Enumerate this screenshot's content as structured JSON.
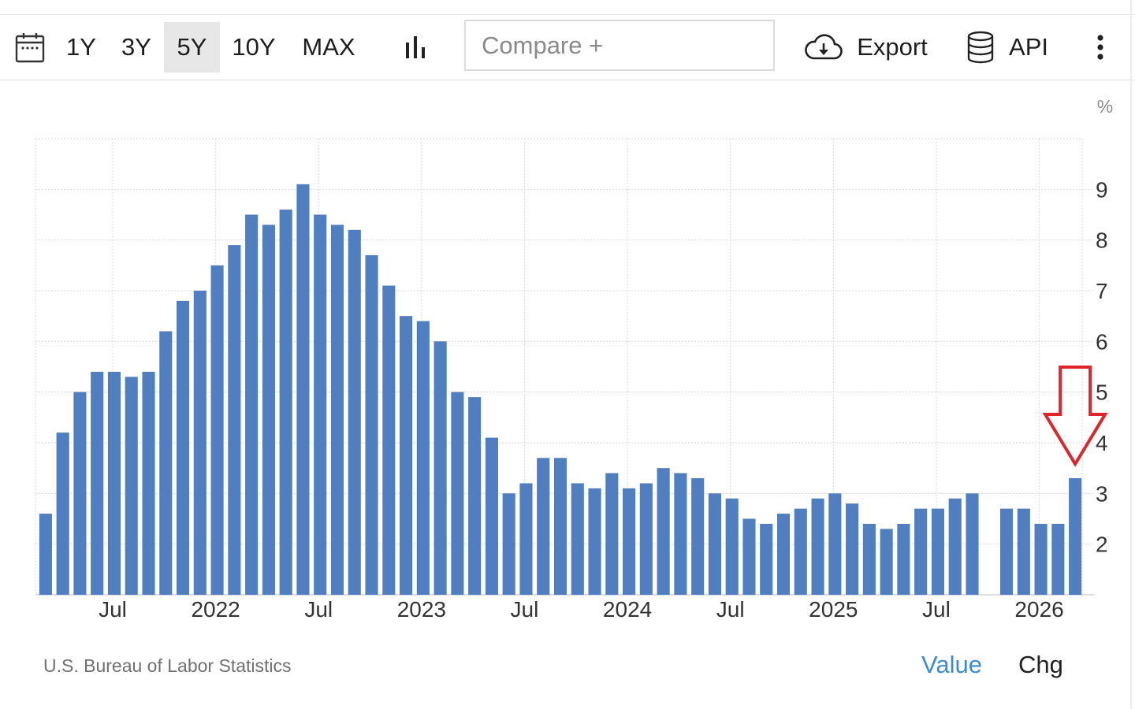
{
  "toolbar": {
    "calendar_icon": "calendar-icon",
    "ranges": [
      "1Y",
      "3Y",
      "5Y",
      "10Y",
      "MAX"
    ],
    "active_range": "5Y",
    "chart_type_icon": "bar-chart-icon",
    "compare_placeholder": "Compare +",
    "export_icon": "cloud-download-icon",
    "export_label": "Export",
    "api_icon": "database-icon",
    "api_label": "API",
    "more_icon": "more-vertical-icon"
  },
  "footer": {
    "source": "U.S. Bureau of Labor Statistics",
    "value_tab": "Value",
    "chg_tab": "Chg"
  },
  "colors": {
    "bar": "#4f7fc0",
    "grid": "#d9d9d9",
    "annotation_arrow": "#e0242a",
    "active_tab_text": "#3d8ad8"
  },
  "chart_data": {
    "type": "bar",
    "unit_label": "%",
    "x_tick_labels": [
      "Jul",
      "2022",
      "Jul",
      "2023",
      "Jul",
      "2024",
      "Jul",
      "2025",
      "Jul",
      "2026"
    ],
    "y_ticks": [
      2,
      3,
      4,
      5,
      6,
      7,
      8,
      9
    ],
    "ylim": [
      1,
      10
    ],
    "grid": true,
    "y_axis_position": "right",
    "categories": [
      "2021-03",
      "2021-04",
      "2021-05",
      "2021-06",
      "2021-07",
      "2021-08",
      "2021-09",
      "2021-10",
      "2021-11",
      "2021-12",
      "2022-01",
      "2022-02",
      "2022-03",
      "2022-04",
      "2022-05",
      "2022-06",
      "2022-07",
      "2022-08",
      "2022-09",
      "2022-10",
      "2022-11",
      "2022-12",
      "2023-01",
      "2023-02",
      "2023-03",
      "2023-04",
      "2023-05",
      "2023-06",
      "2023-07",
      "2023-08",
      "2023-09",
      "2023-10",
      "2023-11",
      "2023-12",
      "2024-01",
      "2024-02",
      "2024-03",
      "2024-04",
      "2024-05",
      "2024-06",
      "2024-07",
      "2024-08",
      "2024-09",
      "2024-10",
      "2024-11",
      "2024-12",
      "2025-01",
      "2025-02",
      "2025-03",
      "2025-04",
      "2025-05",
      "2025-06",
      "2025-07",
      "2025-08",
      "2025-09",
      "2025-10",
      "2025-11",
      "2025-12",
      "2026-01",
      "2026-02"
    ],
    "values": [
      2.6,
      4.2,
      5.0,
      5.4,
      5.4,
      5.3,
      5.4,
      6.2,
      6.8,
      7.0,
      7.5,
      7.9,
      8.5,
      8.3,
      8.6,
      9.1,
      8.5,
      8.3,
      8.2,
      7.7,
      7.1,
      6.5,
      6.4,
      6.0,
      5.0,
      4.9,
      4.1,
      3.0,
      3.2,
      3.7,
      3.7,
      3.2,
      3.1,
      3.4,
      3.1,
      3.2,
      3.5,
      3.4,
      3.3,
      3.0,
      2.9,
      2.5,
      2.4,
      2.6,
      2.7,
      2.9,
      3.0,
      2.8,
      2.4,
      2.3,
      2.4,
      2.7,
      2.7,
      2.9,
      3.0,
      null,
      2.7,
      2.7,
      2.4,
      2.4
    ],
    "extra_last_value": 3.3
  },
  "annotation": {
    "type": "down-arrow",
    "points_to": "last-bar"
  }
}
